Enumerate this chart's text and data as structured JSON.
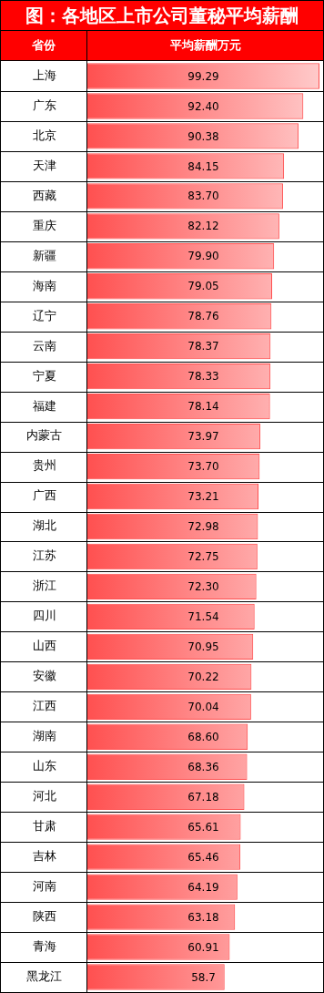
{
  "chart_data": {
    "type": "bar",
    "orientation": "horizontal",
    "title": "图：各地区上市公司董秘平均薪酬",
    "ylabel": "省份",
    "xlabel": "平均薪酬万元",
    "categories": [
      "上海",
      "广东",
      "北京",
      "天津",
      "西藏",
      "重庆",
      "新疆",
      "海南",
      "辽宁",
      "云南",
      "宁夏",
      "福建",
      "内蒙古",
      "贵州",
      "广西",
      "湖北",
      "江苏",
      "浙江",
      "四川",
      "山西",
      "安徽",
      "江西",
      "湖南",
      "山东",
      "河北",
      "甘肃",
      "吉林",
      "河南",
      "陕西",
      "青海",
      "黑龙江"
    ],
    "values": [
      99.29,
      92.4,
      90.38,
      84.15,
      83.7,
      82.12,
      79.9,
      79.05,
      78.76,
      78.37,
      78.33,
      78.14,
      73.97,
      73.7,
      73.21,
      72.98,
      72.75,
      72.3,
      71.54,
      70.95,
      70.22,
      70.04,
      68.6,
      68.36,
      67.18,
      65.61,
      65.46,
      64.19,
      63.18,
      60.91,
      58.7
    ],
    "value_labels": [
      "99.29",
      "92.40",
      "90.38",
      "84.15",
      "83.70",
      "82.12",
      "79.90",
      "79.05",
      "78.76",
      "78.37",
      "78.33",
      "78.14",
      "73.97",
      "73.70",
      "73.21",
      "72.98",
      "72.75",
      "72.30",
      "71.54",
      "70.95",
      "70.22",
      "70.04",
      "68.60",
      "68.36",
      "67.18",
      "65.61",
      "65.46",
      "64.19",
      "63.18",
      "60.91",
      "58.7"
    ],
    "color": "#ff5050",
    "grid": "y",
    "legend": false
  }
}
